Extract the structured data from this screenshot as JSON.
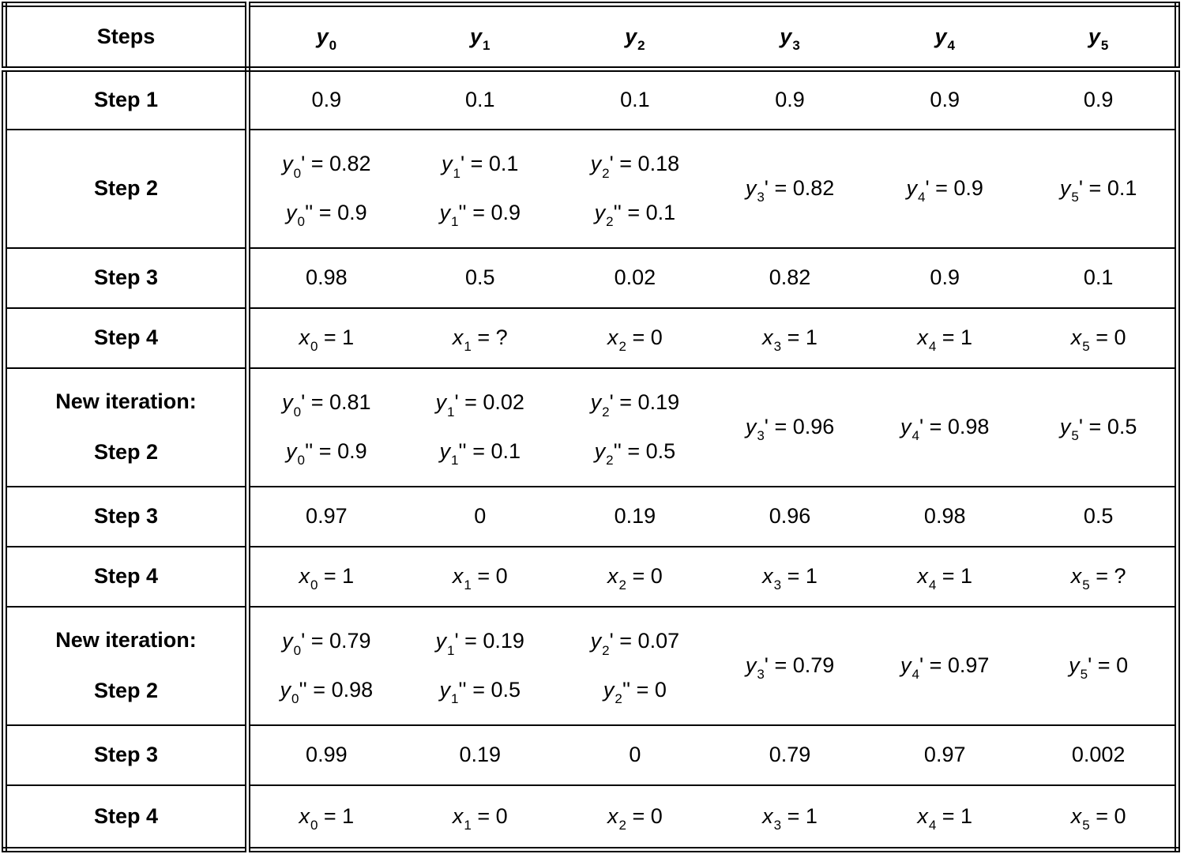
{
  "colors": {
    "text": "#000000",
    "background": "#ffffff",
    "border": "#000000"
  },
  "table": {
    "header": {
      "label": "Steps",
      "cols": [
        "y_0",
        "y_1",
        "y_2",
        "y_3",
        "y_4",
        "y_5"
      ]
    },
    "rows": [
      {
        "type": "single",
        "label": [
          "Step 1"
        ],
        "cells": [
          [
            "0.9"
          ],
          [
            "0.1"
          ],
          [
            "0.1"
          ],
          [
            "0.9"
          ],
          [
            "0.9"
          ],
          [
            "0.9"
          ]
        ]
      },
      {
        "type": "double",
        "label": [
          "Step 2"
        ],
        "cells": [
          [
            "y_0' = 0.82",
            "y_0'' = 0.9"
          ],
          [
            "y_1' = 0.1",
            "y_1'' = 0.9"
          ],
          [
            "y_2' = 0.18",
            "y_2'' = 0.1"
          ],
          [
            "y_3' = 0.82"
          ],
          [
            "y_4' = 0.9"
          ],
          [
            "y_5' = 0.1"
          ]
        ]
      },
      {
        "type": "single",
        "label": [
          "Step 3"
        ],
        "cells": [
          [
            "0.98"
          ],
          [
            "0.5"
          ],
          [
            "0.02"
          ],
          [
            "0.82"
          ],
          [
            "0.9"
          ],
          [
            "0.1"
          ]
        ]
      },
      {
        "type": "single",
        "label": [
          "Step 4"
        ],
        "cells": [
          [
            "x_0 = 1"
          ],
          [
            "x_1 = ?"
          ],
          [
            "x_2 = 0"
          ],
          [
            "x_3 = 1"
          ],
          [
            "x_4 = 1"
          ],
          [
            "x_5 = 0"
          ]
        ]
      },
      {
        "type": "double",
        "label": [
          "New iteration:",
          "Step 2"
        ],
        "cells": [
          [
            "y_0' = 0.81",
            "y_0'' = 0.9"
          ],
          [
            "y_1' = 0.02",
            "y_1'' = 0.1"
          ],
          [
            "y_2' = 0.19",
            "y_2'' = 0.5"
          ],
          [
            "y_3' = 0.96"
          ],
          [
            "y_4' = 0.98"
          ],
          [
            "y_5' = 0.5"
          ]
        ]
      },
      {
        "type": "single",
        "label": [
          "Step 3"
        ],
        "cells": [
          [
            "0.97"
          ],
          [
            "0"
          ],
          [
            "0.19"
          ],
          [
            "0.96"
          ],
          [
            "0.98"
          ],
          [
            "0.5"
          ]
        ]
      },
      {
        "type": "single",
        "label": [
          "Step 4"
        ],
        "cells": [
          [
            "x_0 = 1"
          ],
          [
            "x_1 = 0"
          ],
          [
            "x_2 = 0"
          ],
          [
            "x_3 = 1"
          ],
          [
            "x_4 = 1"
          ],
          [
            "x_5 = ?"
          ]
        ]
      },
      {
        "type": "double",
        "label": [
          "New iteration:",
          "Step 2"
        ],
        "cells": [
          [
            "y_0' = 0.79",
            "y_0'' = 0.98"
          ],
          [
            "y_1' = 0.19",
            "y_1'' = 0.5"
          ],
          [
            "y_2' = 0.07",
            "y_2'' = 0"
          ],
          [
            "y_3' = 0.79"
          ],
          [
            "y_4' = 0.97"
          ],
          [
            "y_5' = 0"
          ]
        ]
      },
      {
        "type": "single",
        "label": [
          "Step 3"
        ],
        "cells": [
          [
            "0.99"
          ],
          [
            "0.19"
          ],
          [
            "0"
          ],
          [
            "0.79"
          ],
          [
            "0.97"
          ],
          [
            "0.002"
          ]
        ]
      },
      {
        "type": "single",
        "label": [
          "Step 4"
        ],
        "cells": [
          [
            "x_0 = 1"
          ],
          [
            "x_1 = 0"
          ],
          [
            "x_2 = 0"
          ],
          [
            "x_3 = 1"
          ],
          [
            "x_4 = 1"
          ],
          [
            "x_5 = 0"
          ]
        ]
      }
    ]
  }
}
